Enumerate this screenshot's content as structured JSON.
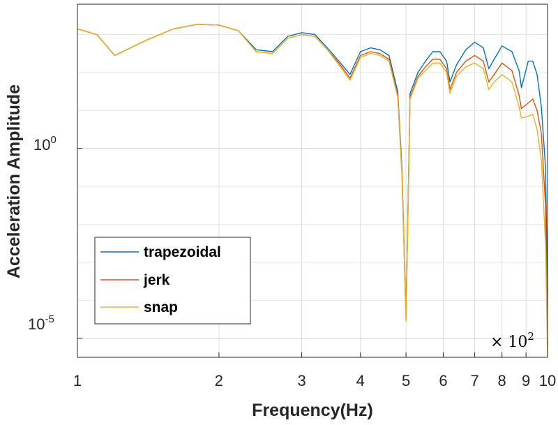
{
  "chart_data": {
    "type": "line",
    "xscale": "log",
    "yscale": "log",
    "xlabel": "Frequency(Hz)",
    "ylabel": "Acceleration Amplitude",
    "x_multiplier_label": "× 10",
    "x_multiplier_exp": "2",
    "xlim": [
      1,
      10
    ],
    "ylim_log10": [
      -5.5,
      3.8
    ],
    "xticks": [
      1,
      2,
      3,
      4,
      5,
      6,
      7,
      8,
      9,
      10
    ],
    "xtick_labels": [
      "1",
      "2",
      "3",
      "4",
      "5",
      "6",
      "7",
      "8",
      "9",
      "10"
    ],
    "yticks": [
      {
        "base": "10",
        "exp": "0",
        "log10": 0
      },
      {
        "base": "10",
        "exp": "-5",
        "log10": -5
      }
    ],
    "grid": true,
    "legend_position": "lower-left",
    "x": [
      1.0,
      1.1,
      1.2,
      1.4,
      1.6,
      1.8,
      2.0,
      2.2,
      2.4,
      2.6,
      2.8,
      3.0,
      3.2,
      3.4,
      3.6,
      3.8,
      4.0,
      4.2,
      4.4,
      4.6,
      4.8,
      4.9,
      5.0,
      5.05,
      5.1,
      5.3,
      5.5,
      5.7,
      5.9,
      6.1,
      6.2,
      6.4,
      6.7,
      7.0,
      7.3,
      7.5,
      7.7,
      8.0,
      8.4,
      8.7,
      8.8,
      9.1,
      9.3,
      9.5,
      9.7,
      9.9,
      10.0
    ],
    "series": [
      {
        "name": "trapezoidal",
        "color": "#0072BD",
        "values": [
          3.15,
          3.0,
          2.45,
          2.85,
          3.15,
          3.27,
          3.25,
          3.1,
          2.6,
          2.55,
          2.95,
          3.05,
          3.0,
          2.65,
          2.3,
          1.95,
          2.55,
          2.65,
          2.6,
          2.45,
          1.5,
          -0.5,
          -4.4,
          -1.5,
          1.45,
          2.0,
          2.3,
          2.55,
          2.55,
          2.3,
          1.75,
          2.2,
          2.6,
          2.8,
          2.65,
          2.1,
          2.35,
          2.7,
          2.55,
          2.05,
          1.6,
          2.3,
          2.3,
          1.95,
          1.1,
          -0.5,
          -3.8
        ]
      },
      {
        "name": "jerk",
        "color": "#D95319",
        "values": [
          3.15,
          3.0,
          2.45,
          2.85,
          3.15,
          3.27,
          3.25,
          3.1,
          2.55,
          2.5,
          2.9,
          3.0,
          2.95,
          2.6,
          2.25,
          1.85,
          2.45,
          2.55,
          2.5,
          2.35,
          1.4,
          -0.6,
          -4.5,
          -1.6,
          1.35,
          1.9,
          2.15,
          2.35,
          2.35,
          2.1,
          1.55,
          2.0,
          2.3,
          2.45,
          2.3,
          1.75,
          1.95,
          2.25,
          2.05,
          1.4,
          1.05,
          1.2,
          1.3,
          1.0,
          0.4,
          -1.5,
          -5.2
        ]
      },
      {
        "name": "snap",
        "color": "#EDB120",
        "values": [
          3.15,
          3.0,
          2.45,
          2.85,
          3.15,
          3.27,
          3.25,
          3.1,
          2.55,
          2.5,
          2.9,
          3.0,
          2.95,
          2.6,
          2.2,
          1.8,
          2.4,
          2.5,
          2.45,
          2.3,
          1.35,
          -0.7,
          -4.55,
          -1.7,
          1.3,
          1.85,
          2.05,
          2.25,
          2.25,
          2.0,
          1.45,
          1.9,
          2.15,
          2.25,
          2.1,
          1.55,
          1.75,
          1.95,
          1.75,
          1.1,
          0.8,
          0.85,
          0.9,
          0.5,
          -0.3,
          -2.5,
          -5.6
        ]
      }
    ]
  }
}
